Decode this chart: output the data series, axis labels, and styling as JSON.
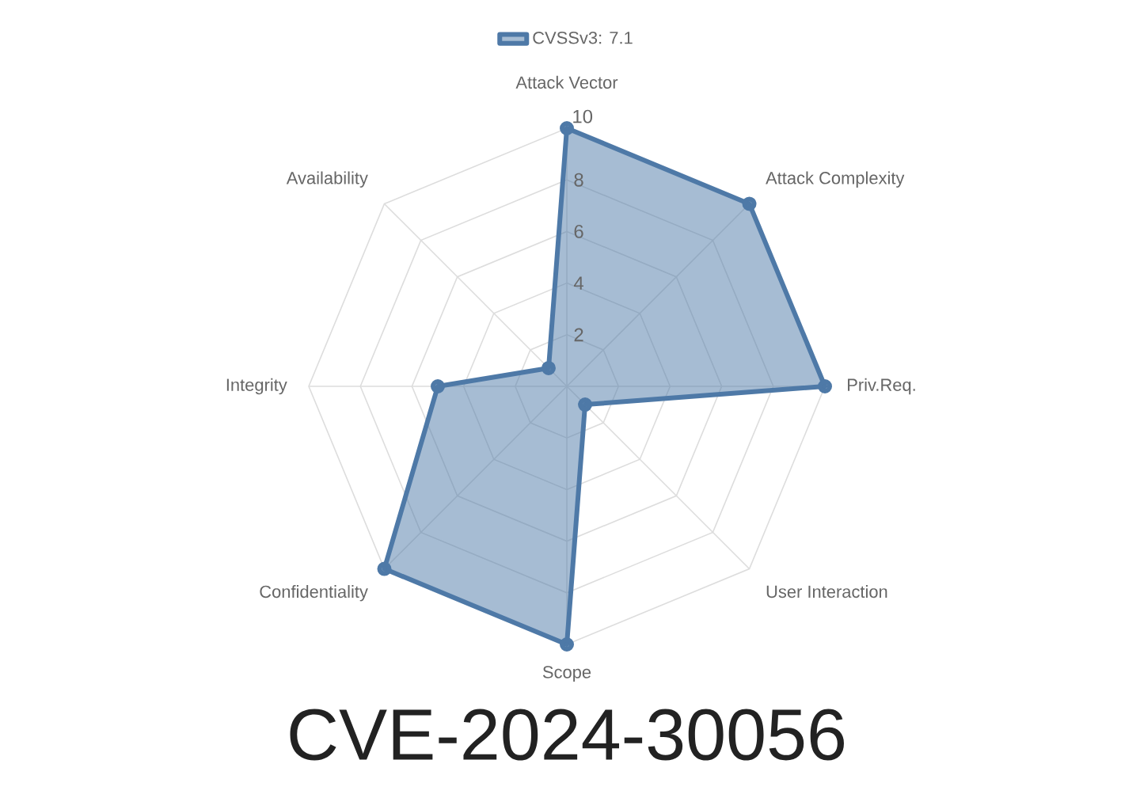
{
  "chart_data": {
    "type": "radar",
    "title": "CVE-2024-30056",
    "categories": [
      "Attack Vector",
      "Attack Complexity",
      "Priv.Req.",
      "User Interaction",
      "Scope",
      "Confidentiality",
      "Integrity",
      "Availability"
    ],
    "series": [
      {
        "name": "CVSSv3: 7.1",
        "color": "#4e79a7",
        "values": [
          10,
          10,
          10,
          1,
          10,
          10,
          5,
          1
        ]
      }
    ],
    "ylim": [
      0,
      10
    ],
    "yticks": [
      2,
      4,
      6,
      8,
      10
    ],
    "grid": true,
    "marker": "circle",
    "legend": "top"
  }
}
